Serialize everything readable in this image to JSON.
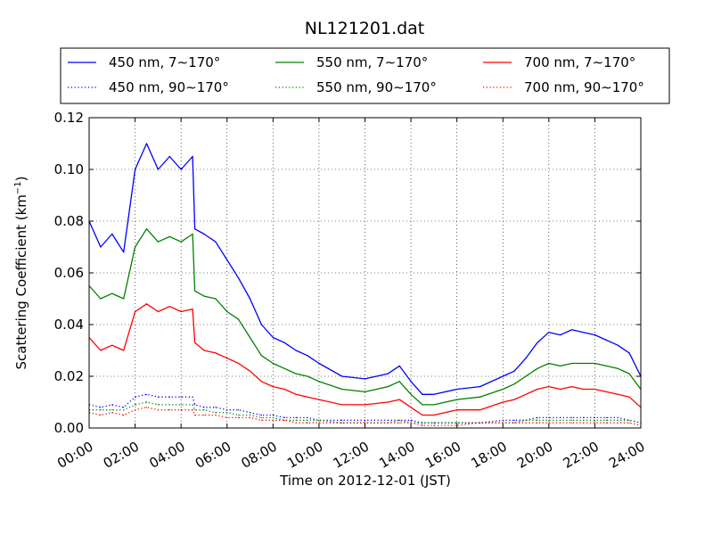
{
  "chart_data": {
    "type": "line",
    "title": "NL121201.dat",
    "xlabel": "Time on 2012-12-01 (JST)",
    "ylabel_main": "Scattering Coefficient (km",
    "ylabel_sup": "−1",
    "ylabel_close": ")",
    "xlim": [
      0,
      24
    ],
    "ylim": [
      0,
      0.12
    ],
    "x_ticks": [
      0,
      2,
      4,
      6,
      8,
      10,
      12,
      14,
      16,
      18,
      20,
      22,
      24
    ],
    "x_tick_labels": [
      "00:00",
      "02:00",
      "04:00",
      "06:00",
      "08:00",
      "10:00",
      "12:00",
      "14:00",
      "16:00",
      "18:00",
      "20:00",
      "22:00",
      "24:00"
    ],
    "y_ticks": [
      0,
      0.02,
      0.04,
      0.06,
      0.08,
      0.1,
      0.12
    ],
    "y_tick_labels": [
      "0.00",
      "0.02",
      "0.04",
      "0.06",
      "0.08",
      "0.10",
      "0.12"
    ],
    "grid": true,
    "legend_position": "top",
    "x": [
      0,
      0.5,
      1,
      1.5,
      2,
      2.5,
      3,
      3.5,
      4,
      4.5,
      4.6,
      5,
      5.5,
      6,
      6.5,
      7,
      7.5,
      8,
      8.5,
      9,
      9.5,
      10,
      11,
      12,
      13,
      13.5,
      14,
      14.5,
      15,
      16,
      17,
      18,
      18.5,
      19,
      19.5,
      20,
      20.5,
      21,
      21.5,
      22,
      22.5,
      23,
      23.5,
      24
    ],
    "series": [
      {
        "name": "450 nm, 7∼170°",
        "color": "#0000ff",
        "dash": "solid",
        "values": [
          0.08,
          0.07,
          0.075,
          0.068,
          0.1,
          0.11,
          0.1,
          0.105,
          0.1,
          0.105,
          0.077,
          0.075,
          0.072,
          0.065,
          0.058,
          0.05,
          0.04,
          0.035,
          0.033,
          0.03,
          0.028,
          0.025,
          0.02,
          0.019,
          0.021,
          0.024,
          0.018,
          0.013,
          0.013,
          0.015,
          0.016,
          0.02,
          0.022,
          0.027,
          0.033,
          0.037,
          0.036,
          0.038,
          0.037,
          0.036,
          0.034,
          0.032,
          0.029,
          0.02
        ]
      },
      {
        "name": "550 nm, 7∼170°",
        "color": "#008000",
        "dash": "solid",
        "values": [
          0.055,
          0.05,
          0.052,
          0.05,
          0.07,
          0.077,
          0.072,
          0.074,
          0.072,
          0.075,
          0.053,
          0.051,
          0.05,
          0.045,
          0.042,
          0.035,
          0.028,
          0.025,
          0.023,
          0.021,
          0.02,
          0.018,
          0.015,
          0.014,
          0.016,
          0.018,
          0.013,
          0.009,
          0.009,
          0.011,
          0.012,
          0.015,
          0.017,
          0.02,
          0.023,
          0.025,
          0.024,
          0.025,
          0.025,
          0.025,
          0.024,
          0.023,
          0.021,
          0.015
        ]
      },
      {
        "name": "700 nm, 7∼170°",
        "color": "#ff0000",
        "dash": "solid",
        "values": [
          0.035,
          0.03,
          0.032,
          0.03,
          0.045,
          0.048,
          0.045,
          0.047,
          0.045,
          0.046,
          0.033,
          0.03,
          0.029,
          0.027,
          0.025,
          0.022,
          0.018,
          0.016,
          0.015,
          0.013,
          0.012,
          0.011,
          0.009,
          0.009,
          0.01,
          0.011,
          0.008,
          0.005,
          0.005,
          0.007,
          0.007,
          0.01,
          0.011,
          0.013,
          0.015,
          0.016,
          0.015,
          0.016,
          0.015,
          0.015,
          0.014,
          0.013,
          0.012,
          0.008
        ]
      },
      {
        "name": "450 nm, 90∼170°",
        "color": "#0000ff",
        "dash": "dotted",
        "values": [
          0.009,
          0.008,
          0.009,
          0.008,
          0.012,
          0.013,
          0.012,
          0.012,
          0.012,
          0.012,
          0.009,
          0.008,
          0.008,
          0.007,
          0.007,
          0.006,
          0.005,
          0.005,
          0.004,
          0.004,
          0.004,
          0.003,
          0.003,
          0.003,
          0.003,
          0.003,
          0.003,
          0.002,
          0.002,
          0.002,
          0.002,
          0.003,
          0.003,
          0.003,
          0.004,
          0.004,
          0.004,
          0.004,
          0.004,
          0.004,
          0.004,
          0.004,
          0.003,
          0.002
        ]
      },
      {
        "name": "550 nm, 90∼170°",
        "color": "#008000",
        "dash": "dotted",
        "values": [
          0.007,
          0.007,
          0.007,
          0.007,
          0.009,
          0.01,
          0.009,
          0.009,
          0.009,
          0.009,
          0.007,
          0.007,
          0.006,
          0.006,
          0.005,
          0.005,
          0.004,
          0.004,
          0.003,
          0.003,
          0.003,
          0.003,
          0.002,
          0.002,
          0.002,
          0.003,
          0.002,
          0.002,
          0.002,
          0.002,
          0.002,
          0.002,
          0.002,
          0.003,
          0.003,
          0.003,
          0.003,
          0.003,
          0.003,
          0.003,
          0.003,
          0.003,
          0.003,
          0.002
        ]
      },
      {
        "name": "700 nm, 90∼170°",
        "color": "#ff0000",
        "dash": "dotted",
        "values": [
          0.006,
          0.005,
          0.006,
          0.005,
          0.007,
          0.008,
          0.007,
          0.007,
          0.007,
          0.007,
          0.005,
          0.005,
          0.005,
          0.004,
          0.004,
          0.004,
          0.003,
          0.003,
          0.003,
          0.002,
          0.002,
          0.002,
          0.002,
          0.002,
          0.002,
          0.002,
          0.002,
          0.001,
          0.001,
          0.001,
          0.002,
          0.002,
          0.002,
          0.002,
          0.002,
          0.002,
          0.002,
          0.002,
          0.002,
          0.002,
          0.002,
          0.002,
          0.002,
          0.001
        ]
      }
    ],
    "legend_order": [
      0,
      1,
      2,
      3,
      4,
      5
    ]
  }
}
